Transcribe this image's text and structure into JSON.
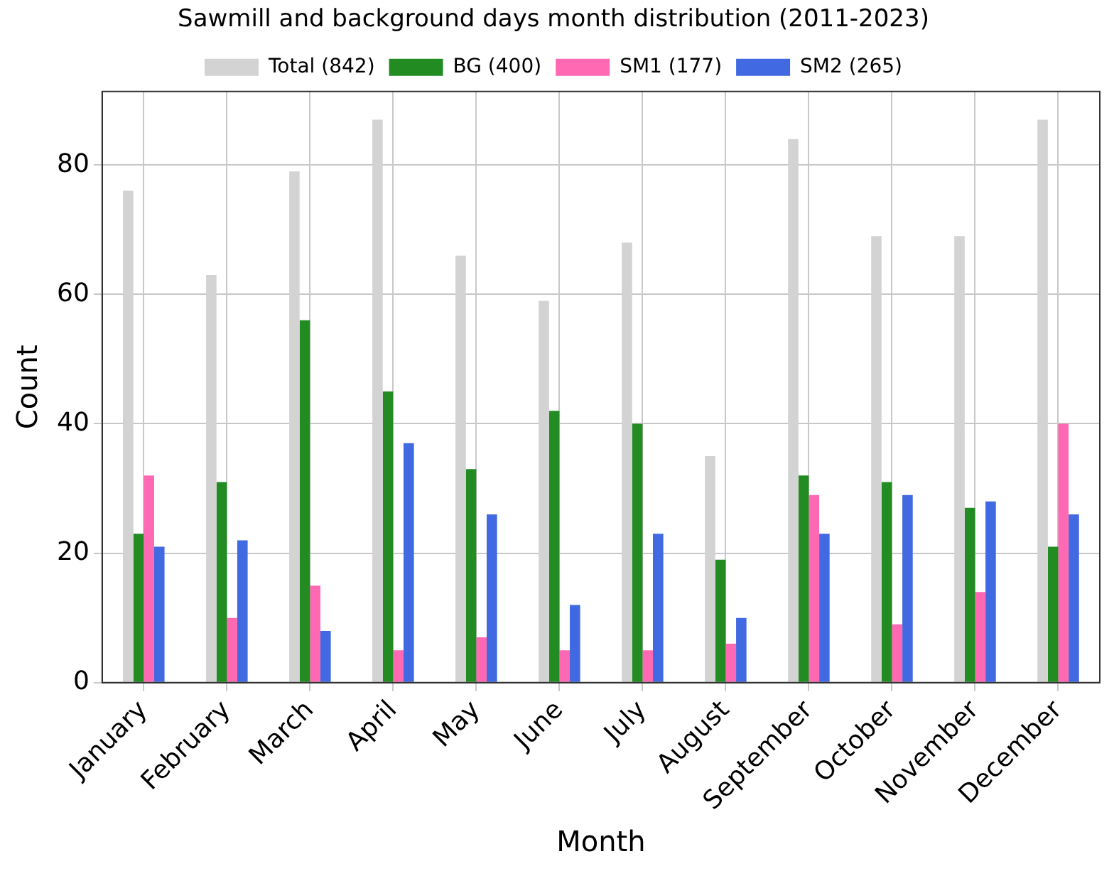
{
  "chart_data": {
    "type": "bar",
    "title": "Sawmill and background days month distribution (2011-2023)",
    "xlabel": "Month",
    "ylabel": "Count",
    "categories": [
      "January",
      "February",
      "March",
      "April",
      "May",
      "June",
      "July",
      "August",
      "September",
      "October",
      "November",
      "December"
    ],
    "series": [
      {
        "name": "Total (842)",
        "color": "#d3d3d3",
        "values": [
          76,
          63,
          79,
          87,
          66,
          59,
          68,
          35,
          84,
          69,
          69,
          87
        ]
      },
      {
        "name": "BG (400)",
        "color": "#228b22",
        "values": [
          23,
          31,
          56,
          45,
          33,
          42,
          40,
          19,
          32,
          31,
          27,
          21
        ]
      },
      {
        "name": "SM1 (177)",
        "color": "#ff69b4",
        "values": [
          32,
          10,
          15,
          5,
          7,
          5,
          5,
          6,
          29,
          9,
          14,
          40
        ]
      },
      {
        "name": "SM2 (265)",
        "color": "#4169e1",
        "values": [
          21,
          22,
          8,
          37,
          26,
          12,
          23,
          10,
          23,
          29,
          28,
          26
        ]
      }
    ],
    "ylim": [
      0,
      91.35
    ],
    "yticks": [
      0,
      20,
      40,
      60,
      80
    ],
    "grid": true,
    "legend": "top"
  }
}
